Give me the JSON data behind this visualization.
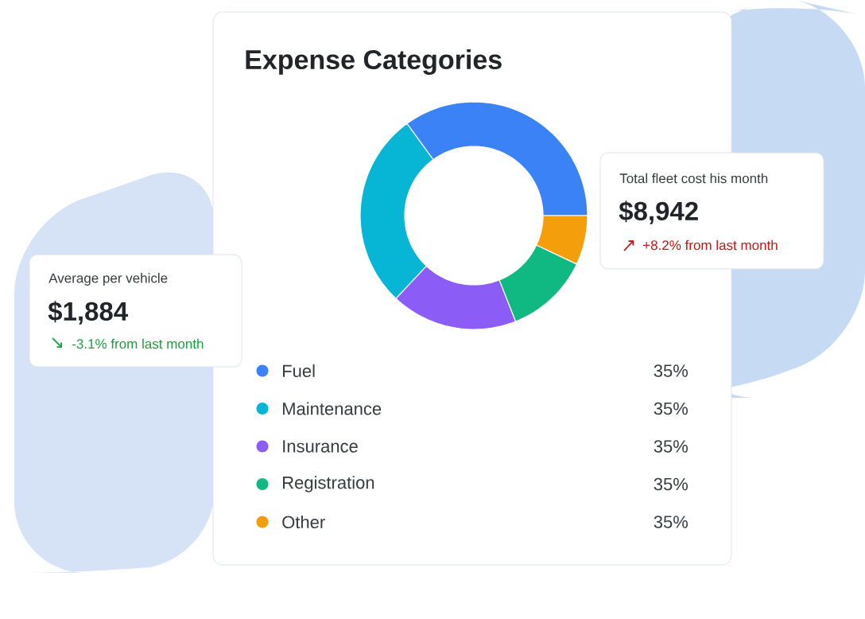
{
  "chart_data": {
    "type": "donut",
    "title": "Expense Categories",
    "categories": [
      "Fuel",
      "Maintenance",
      "Insurance",
      "Registration",
      "Other"
    ],
    "values": [
      35,
      28,
      18,
      12,
      7
    ],
    "colors": [
      "#3b82f6",
      "#06b6d4",
      "#8b5cf6",
      "#10b981",
      "#f59e0b"
    ],
    "legend": "bottom",
    "annotations": [
      "Total fleet cost his month",
      "$8,942",
      "+8.2% from last month",
      "Average per vehicle",
      "$1,884",
      "-3.1% from last month",
      "35%",
      "35%",
      "35%",
      "35%",
      "35%"
    ]
  }
}
